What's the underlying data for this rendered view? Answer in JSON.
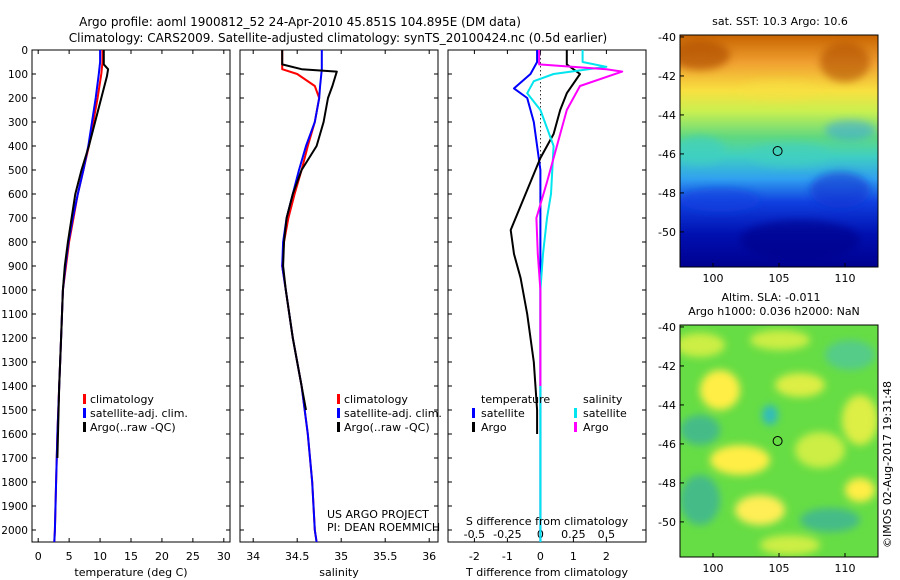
{
  "title_line1": "Argo profile: aoml 1900812_52 24-Apr-2010 45.851S 104.895E (DM data)",
  "title_line2": "Climatology: CARS2009. Satellite-adjusted climatology: synTS_20100424.nc (0.5d earlier)",
  "project_line1": "US ARGO PROJECT",
  "project_line2": "PI: DEAN ROEMMICH",
  "timestamp": "©IMOS 02-Aug-2017 19:31:48",
  "map_sst_title": "sat. SST: 10.3 Argo: 10.6",
  "map_sla_title1": "Altim. SLA: -0.011",
  "map_sla_title2": "Argo h1000: 0.036 h2000: NaN",
  "colors": {
    "climatology": "#ff0000",
    "satellite": "#0000ff",
    "argo": "#000000",
    "sal_satellite": "#00e5ee",
    "sal_argo": "#ff00ff"
  },
  "chart_data": [
    {
      "type": "line",
      "name": "temperature",
      "xlabel": "temperature (deg C)",
      "ylabel": "",
      "xlim": [
        -1,
        31
      ],
      "ylim": [
        2050,
        0
      ],
      "xticks": [
        "0",
        "5",
        "10",
        "15",
        "20",
        "25",
        "30"
      ],
      "yticks": [
        "0",
        "100",
        "200",
        "300",
        "400",
        "500",
        "600",
        "700",
        "800",
        "900",
        "1000",
        "1100",
        "1200",
        "1300",
        "1400",
        "1500",
        "1600",
        "1700",
        "1800",
        "1900",
        "2000"
      ],
      "legend": [
        "climatology",
        "satellite-adj. clim.",
        "Argo(..raw -QC)"
      ],
      "legend_position": "lower-right",
      "series": [
        {
          "name": "climatology",
          "color": "#ff0000",
          "points": [
            [
              10.4,
              0
            ],
            [
              10.4,
              50
            ],
            [
              10.2,
              100
            ],
            [
              9.6,
              200
            ],
            [
              8.9,
              300
            ],
            [
              8.2,
              400
            ],
            [
              7.3,
              500
            ],
            [
              6.4,
              600
            ],
            [
              5.7,
              700
            ],
            [
              5.0,
              800
            ],
            [
              4.5,
              900
            ],
            [
              4.0,
              1000
            ],
            [
              3.7,
              1200
            ],
            [
              3.4,
              1400
            ],
            [
              3.1,
              1600
            ],
            [
              2.9,
              1800
            ],
            [
              2.7,
              2000
            ],
            [
              2.6,
              2050
            ]
          ]
        },
        {
          "name": "satellite-adj. clim.",
          "color": "#0000ff",
          "points": [
            [
              10.0,
              0
            ],
            [
              10.0,
              50
            ],
            [
              9.8,
              100
            ],
            [
              9.3,
              200
            ],
            [
              8.7,
              300
            ],
            [
              8.1,
              400
            ],
            [
              7.3,
              500
            ],
            [
              6.4,
              600
            ],
            [
              5.6,
              700
            ],
            [
              4.9,
              800
            ],
            [
              4.4,
              900
            ],
            [
              4.0,
              1000
            ],
            [
              3.7,
              1200
            ],
            [
              3.4,
              1400
            ],
            [
              3.1,
              1600
            ],
            [
              2.9,
              1800
            ],
            [
              2.7,
              2000
            ],
            [
              2.6,
              2050
            ]
          ]
        },
        {
          "name": "Argo(..raw -QC)",
          "color": "#000000",
          "points": [
            [
              10.6,
              0
            ],
            [
              10.6,
              60
            ],
            [
              11.3,
              80
            ],
            [
              11.1,
              110
            ],
            [
              10.2,
              200
            ],
            [
              9.2,
              300
            ],
            [
              8.2,
              400
            ],
            [
              7.0,
              500
            ],
            [
              6.0,
              600
            ],
            [
              5.4,
              700
            ],
            [
              4.8,
              800
            ],
            [
              4.3,
              900
            ],
            [
              4.0,
              1000
            ],
            [
              3.7,
              1200
            ],
            [
              3.4,
              1400
            ],
            [
              3.2,
              1600
            ],
            [
              3.1,
              1700
            ]
          ]
        }
      ]
    },
    {
      "type": "line",
      "name": "salinity",
      "xlabel": "salinity",
      "ylabel": "",
      "xlim": [
        33.85,
        36.1
      ],
      "ylim": [
        2050,
        0
      ],
      "xticks": [
        "34",
        "34.5",
        "35",
        "35.5",
        "36"
      ],
      "legend": [
        "climatology",
        "satellite-adj. clim.",
        "Argo(..raw -QC)"
      ],
      "legend_position": "lower-right",
      "series": [
        {
          "name": "climatology",
          "color": "#ff0000",
          "points": [
            [
              34.33,
              0
            ],
            [
              34.33,
              80
            ],
            [
              34.5,
              100
            ],
            [
              34.7,
              150
            ],
            [
              34.75,
              200
            ],
            [
              34.7,
              300
            ],
            [
              34.62,
              400
            ],
            [
              34.55,
              500
            ],
            [
              34.47,
              600
            ],
            [
              34.4,
              700
            ],
            [
              34.35,
              800
            ],
            [
              34.33,
              900
            ],
            [
              34.37,
              1000
            ],
            [
              34.45,
              1200
            ],
            [
              34.55,
              1400
            ],
            [
              34.62,
              1600
            ],
            [
              34.67,
              1800
            ],
            [
              34.7,
              2000
            ],
            [
              34.72,
              2050
            ]
          ]
        },
        {
          "name": "satellite-adj. clim.",
          "color": "#0000ff",
          "points": [
            [
              34.78,
              0
            ],
            [
              34.78,
              80
            ],
            [
              34.76,
              150
            ],
            [
              34.75,
              200
            ],
            [
              34.7,
              300
            ],
            [
              34.6,
              400
            ],
            [
              34.52,
              500
            ],
            [
              34.45,
              600
            ],
            [
              34.38,
              700
            ],
            [
              34.34,
              800
            ],
            [
              34.33,
              900
            ],
            [
              34.37,
              1000
            ],
            [
              34.45,
              1200
            ],
            [
              34.55,
              1400
            ],
            [
              34.62,
              1600
            ],
            [
              34.67,
              1800
            ],
            [
              34.7,
              2000
            ],
            [
              34.72,
              2050
            ]
          ]
        },
        {
          "name": "Argo(..raw -QC)",
          "color": "#000000",
          "points": [
            [
              34.33,
              0
            ],
            [
              34.33,
              60
            ],
            [
              34.55,
              80
            ],
            [
              34.95,
              90
            ],
            [
              34.9,
              150
            ],
            [
              34.85,
              200
            ],
            [
              34.8,
              300
            ],
            [
              34.72,
              400
            ],
            [
              34.55,
              500
            ],
            [
              34.45,
              600
            ],
            [
              34.38,
              700
            ],
            [
              34.35,
              800
            ],
            [
              34.34,
              900
            ],
            [
              34.37,
              1000
            ],
            [
              34.45,
              1200
            ],
            [
              34.55,
              1400
            ],
            [
              34.6,
              1500
            ]
          ]
        }
      ]
    },
    {
      "type": "line",
      "name": "differences",
      "xlabel": "T difference from climatology",
      "xlabel_top": "S difference from climatology",
      "xlim": [
        -2.8,
        3.2
      ],
      "xlim_salinity": [
        -0.7,
        0.8
      ],
      "ylim": [
        2050,
        0
      ],
      "xticks": [
        "-2",
        "-1",
        "0",
        "1",
        "2"
      ],
      "xticks_salinity": [
        "-0.5",
        "-0.25",
        "0",
        "0.25",
        "0.5"
      ],
      "legend_headers": [
        "temperature",
        "salinity"
      ],
      "legend": [
        "satellite",
        "Argo",
        "satellite",
        "Argo"
      ],
      "legend_position": "lower-center",
      "series": [
        {
          "name": "temperature satellite",
          "color": "#0000ff",
          "points": [
            [
              -0.1,
              0
            ],
            [
              -0.1,
              50
            ],
            [
              -0.3,
              100
            ],
            [
              -0.8,
              160
            ],
            [
              -0.4,
              200
            ],
            [
              -0.2,
              300
            ],
            [
              -0.1,
              400
            ],
            [
              0,
              500
            ],
            [
              0,
              700
            ],
            [
              0,
              1000
            ],
            [
              0,
              1500
            ],
            [
              0,
              2000
            ],
            [
              0,
              2050
            ]
          ]
        },
        {
          "name": "temperature Argo",
          "color": "#000000",
          "points": [
            [
              0.8,
              0
            ],
            [
              0.8,
              60
            ],
            [
              1.2,
              100
            ],
            [
              0.8,
              180
            ],
            [
              0.6,
              250
            ],
            [
              0.4,
              350
            ],
            [
              0,
              450
            ],
            [
              -0.3,
              550
            ],
            [
              -0.6,
              650
            ],
            [
              -0.9,
              750
            ],
            [
              -0.8,
              850
            ],
            [
              -0.6,
              950
            ],
            [
              -0.4,
              1100
            ],
            [
              -0.2,
              1300
            ],
            [
              -0.1,
              1500
            ],
            [
              -0.1,
              1600
            ]
          ]
        },
        {
          "name": "salinity satellite",
          "color": "#00e5ee",
          "points": [
            [
              0.32,
              0
            ],
            [
              0.32,
              50
            ],
            [
              0.5,
              70
            ],
            [
              0.1,
              100
            ],
            [
              -0.05,
              130
            ],
            [
              -0.1,
              180
            ],
            [
              0.0,
              250
            ],
            [
              0.1,
              400
            ],
            [
              0.08,
              600
            ],
            [
              0.05,
              700
            ],
            [
              0.02,
              850
            ],
            [
              0,
              1000
            ],
            [
              0,
              2050
            ]
          ]
        },
        {
          "name": "salinity Argo",
          "color": "#ff00ff",
          "points": [
            [
              -0.01,
              0
            ],
            [
              -0.01,
              60
            ],
            [
              0.5,
              80
            ],
            [
              0.62,
              90
            ],
            [
              0.3,
              150
            ],
            [
              0.2,
              250
            ],
            [
              0.15,
              350
            ],
            [
              0.1,
              450
            ],
            [
              0.05,
              550
            ],
            [
              -0.03,
              700
            ],
            [
              -0.02,
              850
            ],
            [
              0,
              1000
            ],
            [
              0,
              1200
            ],
            [
              0,
              1400
            ]
          ]
        }
      ]
    },
    {
      "type": "heatmap",
      "name": "sst-map",
      "title": "sat. SST: 10.3 Argo: 10.6",
      "xlim": [
        97.5,
        112.5
      ],
      "ylim": [
        -51.8,
        -39.9
      ],
      "xticks": [
        "100",
        "105",
        "110"
      ],
      "yticks": [
        "-40",
        "-42",
        "-44",
        "-46",
        "-48",
        "-50"
      ],
      "marker": {
        "lon": 104.895,
        "lat": -45.851
      }
    },
    {
      "type": "heatmap",
      "name": "sla-map",
      "title": "Altim. SLA: -0.011",
      "subtitle": "Argo h1000: 0.036 h2000: NaN",
      "xlim": [
        97.5,
        112.5
      ],
      "ylim": [
        -51.8,
        -39.9
      ],
      "xticks": [
        "100",
        "105",
        "110"
      ],
      "yticks": [
        "-40",
        "-42",
        "-44",
        "-46",
        "-48",
        "-50"
      ],
      "marker": {
        "lon": 104.895,
        "lat": -45.851
      }
    }
  ]
}
